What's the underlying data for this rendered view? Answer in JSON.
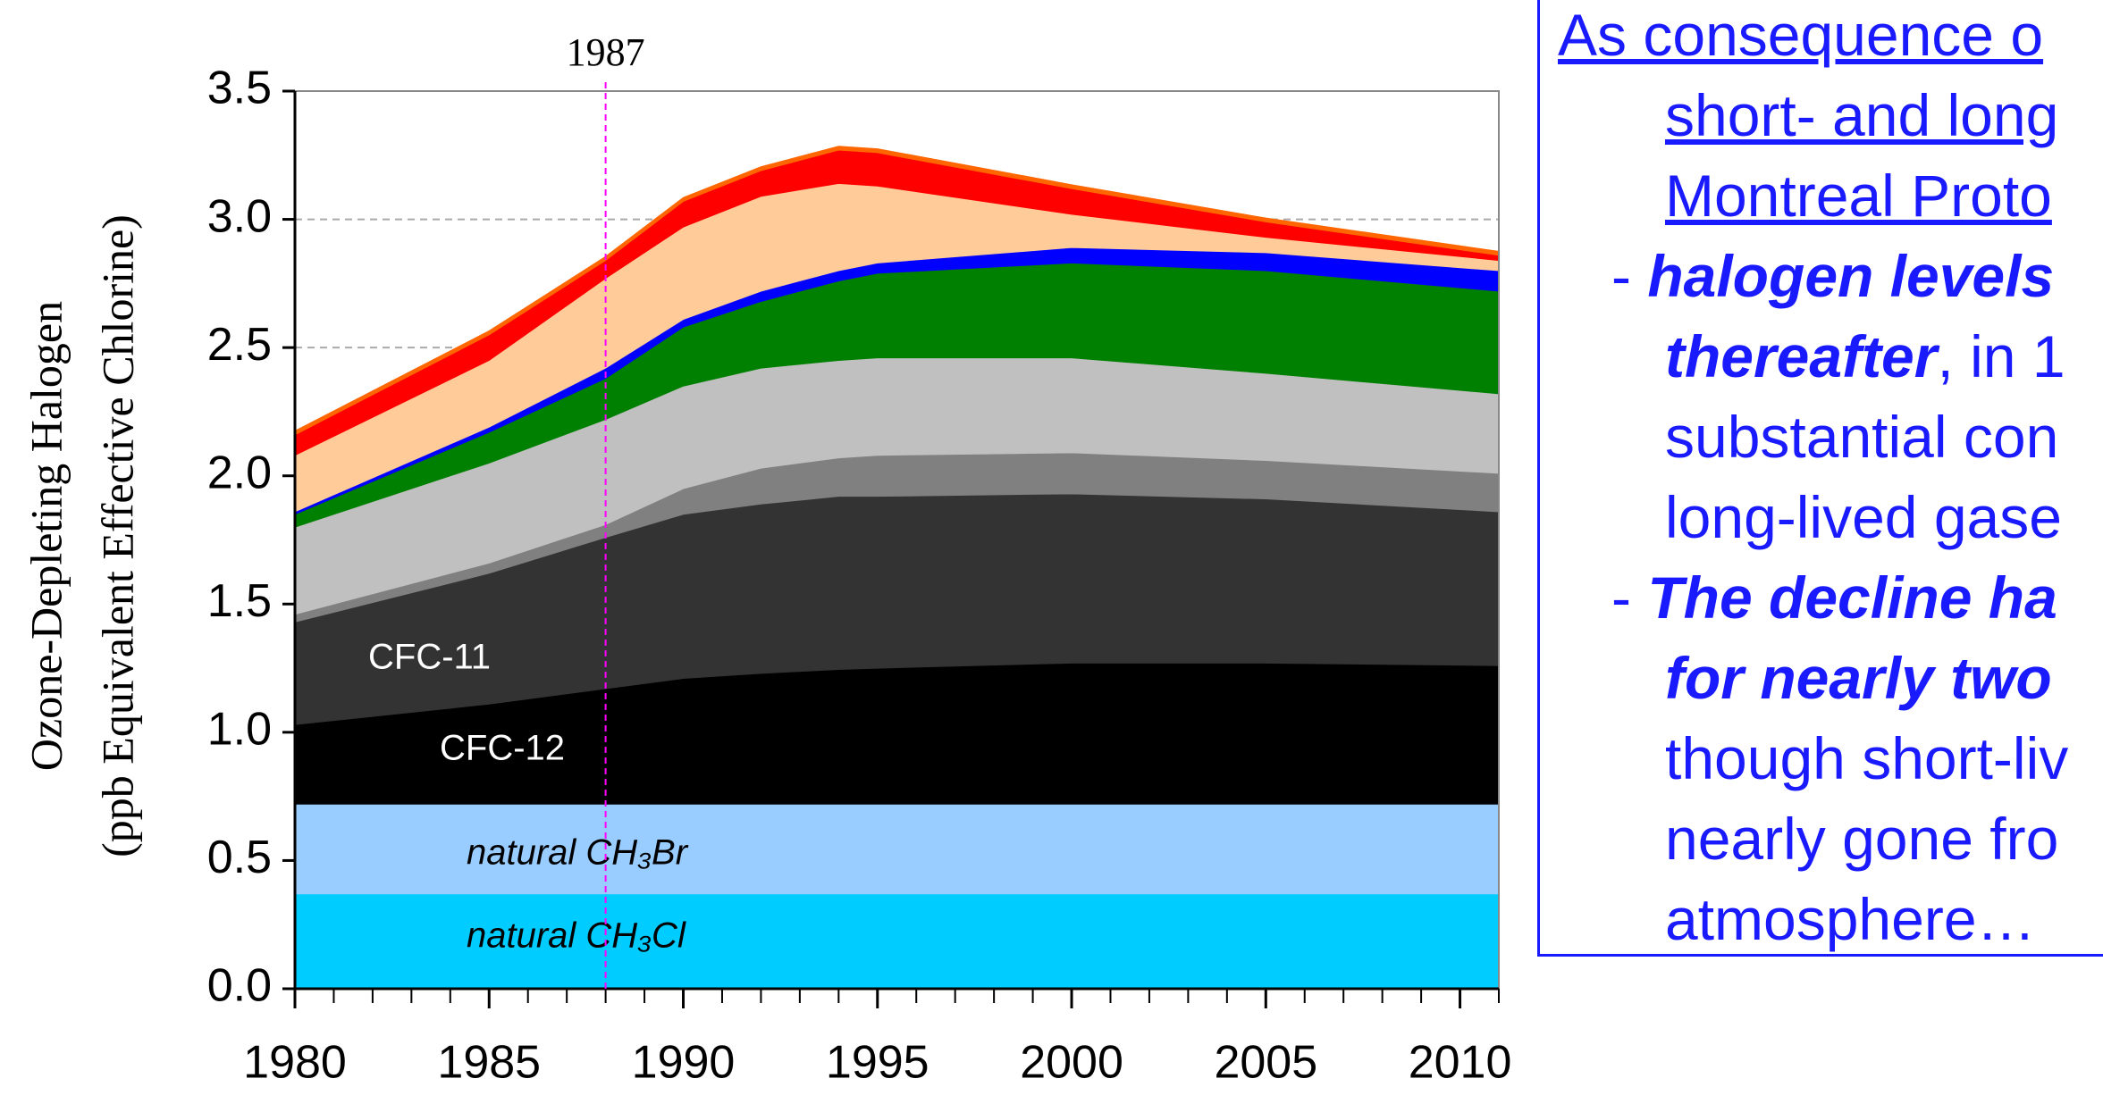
{
  "chart_data": {
    "type": "stacked_area",
    "y_label_lines": [
      "Ozone-Depleting Halogen",
      "(ppb Equivalent Effective Chlorine)"
    ],
    "annotation": {
      "text": "1987",
      "x": 1988,
      "color": "#ff00ff"
    },
    "x": [
      1980,
      1985,
      1988,
      1990,
      1992,
      1994,
      1995,
      2000,
      2005,
      2011
    ],
    "series": [
      {
        "name": "natural CH₃Cl",
        "color": "#00ccff",
        "values": [
          0.37,
          0.37,
          0.37,
          0.37,
          0.37,
          0.37,
          0.37,
          0.37,
          0.37,
          0.37
        ]
      },
      {
        "name": "natural CH₃Br",
        "color": "#99ccff",
        "values": [
          0.35,
          0.35,
          0.35,
          0.35,
          0.35,
          0.35,
          0.35,
          0.35,
          0.35,
          0.35
        ]
      },
      {
        "name": "CFC-12",
        "color": "#000000",
        "values": [
          0.31,
          0.39,
          0.45,
          0.49,
          0.51,
          0.525,
          0.53,
          0.55,
          0.55,
          0.54
        ]
      },
      {
        "name": "CFC-11",
        "color": "#333333",
        "values": [
          0.4,
          0.51,
          0.59,
          0.64,
          0.66,
          0.675,
          0.67,
          0.66,
          0.64,
          0.6
        ]
      },
      {
        "color": "#808080",
        "values": [
          0.03,
          0.04,
          0.05,
          0.1,
          0.14,
          0.15,
          0.16,
          0.16,
          0.15,
          0.15
        ]
      },
      {
        "color": "#c0c0c0",
        "values": [
          0.34,
          0.39,
          0.41,
          0.4,
          0.39,
          0.38,
          0.38,
          0.37,
          0.34,
          0.31
        ]
      },
      {
        "color": "#008000",
        "values": [
          0.05,
          0.12,
          0.16,
          0.23,
          0.26,
          0.31,
          0.33,
          0.37,
          0.4,
          0.4
        ]
      },
      {
        "color": "#0000ff",
        "values": [
          0.01,
          0.02,
          0.04,
          0.03,
          0.04,
          0.04,
          0.04,
          0.06,
          0.07,
          0.08
        ]
      },
      {
        "color": "#ffcc99",
        "values": [
          0.22,
          0.26,
          0.35,
          0.36,
          0.37,
          0.34,
          0.3,
          0.13,
          0.06,
          0.04
        ]
      },
      {
        "color": "#ff0000",
        "values": [
          0.08,
          0.1,
          0.07,
          0.1,
          0.1,
          0.13,
          0.13,
          0.1,
          0.06,
          0.02
        ]
      },
      {
        "color": "#ff6600",
        "values": [
          0.015,
          0.015,
          0.015,
          0.015,
          0.015,
          0.015,
          0.015,
          0.015,
          0.015,
          0.015
        ]
      }
    ],
    "xlim": [
      1980,
      2011
    ],
    "xticks": [
      1980,
      1985,
      1990,
      1995,
      2000,
      2005,
      2010
    ],
    "xminorticks": [
      1980,
      1981,
      1982,
      1983,
      1984,
      1985,
      1986,
      1987,
      1988,
      1989,
      1990,
      1991,
      1992,
      1993,
      1994,
      1995,
      1996,
      1997,
      1998,
      1999,
      2000,
      2001,
      2002,
      2003,
      2004,
      2005,
      2006,
      2007,
      2008,
      2009,
      2010,
      2011
    ],
    "ylim": [
      0,
      3.5
    ],
    "yticks": [
      {
        "value": 0,
        "label": "0.0"
      },
      0.5,
      {
        "value": 1,
        "label": "1.0"
      },
      1.5,
      {
        "value": 2,
        "label": "2.0"
      },
      2.5,
      {
        "value": 3,
        "label": "3.0"
      },
      3.5
    ],
    "grid": true
  },
  "textbox": {
    "color": "#1a1aff",
    "lines": [
      [
        {
          "text": "As consequence o",
          "style": "underline"
        }
      ],
      [
        {
          "text": "short- and long",
          "style": "underline"
        }
      ],
      [
        {
          "text": "Montreal Proto",
          "style": "underline"
        }
      ],
      [
        {
          "text": "- ",
          "style": "normal"
        },
        {
          "text": "halogen levels",
          "style": "bold-italic"
        }
      ],
      [
        {
          "text": "thereafter",
          "style": "bold-italic"
        },
        {
          "text": ", in 1",
          "style": "normal"
        }
      ],
      [
        {
          "text": "substantial con",
          "style": "normal"
        }
      ],
      [
        {
          "text": "long-lived gase",
          "style": "normal"
        }
      ],
      [
        {
          "text": "- ",
          "style": "normal"
        },
        {
          "text": "The decline ha",
          "style": "bold-italic"
        }
      ],
      [
        {
          "text": "for nearly two",
          "style": "bold-italic"
        }
      ],
      [
        {
          "text": "though short-liv",
          "style": "normal"
        }
      ],
      [
        {
          "text": "nearly gone fro",
          "style": "normal"
        }
      ],
      [
        {
          "text": "atmosphere…",
          "style": "normal"
        }
      ]
    ]
  }
}
